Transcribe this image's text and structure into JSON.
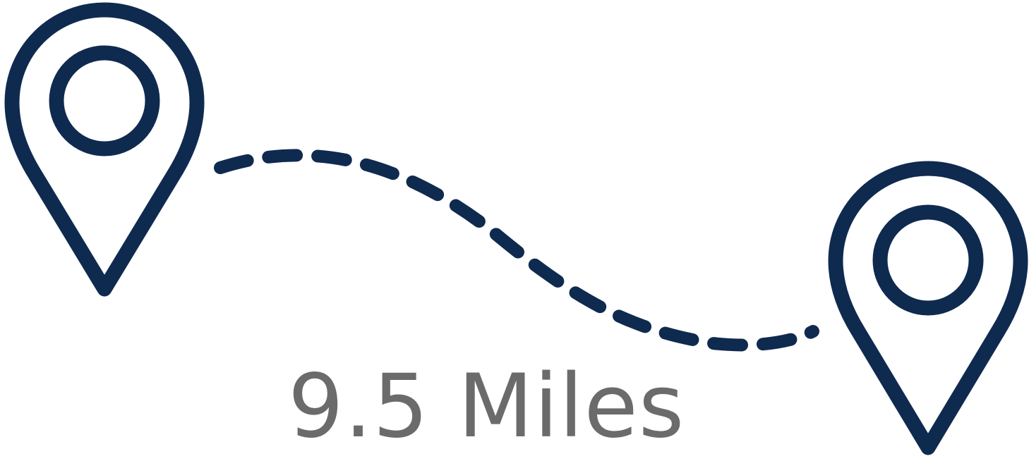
{
  "distance": {
    "label": "9.5 Miles"
  },
  "icons": {
    "start": "map-pin-icon",
    "end": "map-pin-icon",
    "route": "dashed-route-path"
  },
  "colors": {
    "pin": "#0f2a4f",
    "route": "#0f2a4f",
    "text": "#6b6b6b",
    "background": "#ffffff"
  }
}
